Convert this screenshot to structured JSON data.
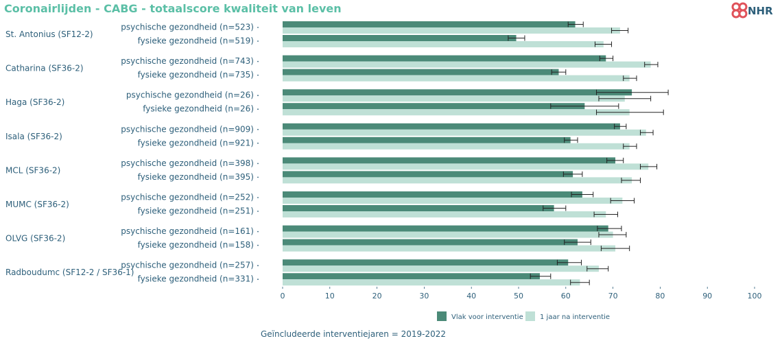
{
  "title": "Coronairlijden - CABG - totaalscore kwaliteit van leven",
  "logo_text": "NHR",
  "footer": "Geïncludeerde interventiejaren = 2019-2022",
  "colors": {
    "title": "#5bbfa6",
    "before": "#4b8a78",
    "after": "#bfe0d6",
    "logo": "#e0525a",
    "text": "#2d5f7a"
  },
  "chart_data": {
    "type": "bar",
    "orientation": "horizontal",
    "xlim": [
      0,
      100
    ],
    "x_ticks": [
      0,
      10,
      20,
      30,
      40,
      50,
      60,
      70,
      80,
      90,
      100
    ],
    "legend": [
      {
        "key": "before",
        "label": "Vlak voor interventie"
      },
      {
        "key": "after",
        "label": "1 jaar na interventie"
      }
    ],
    "legend_position": "bottom",
    "groups": [
      {
        "hospital": "St. Antonius (SF12-2)",
        "rows": [
          {
            "label": "psychische gezondheid (n=523)",
            "before": 62.0,
            "before_ci": [
              60.5,
              63.7
            ],
            "after": 71.5,
            "after_ci": [
              69.7,
              73.2
            ]
          },
          {
            "label": "fysieke gezondheid (n=519)",
            "before": 49.5,
            "before_ci": [
              47.8,
              51.3
            ],
            "after": 68.0,
            "after_ci": [
              66.2,
              69.7
            ]
          }
        ]
      },
      {
        "hospital": "Catharina (SF36-2)",
        "rows": [
          {
            "label": "psychische gezondheid (n=743)",
            "before": 68.5,
            "before_ci": [
              67.2,
              70.0
            ],
            "after": 78.0,
            "after_ci": [
              76.7,
              79.5
            ]
          },
          {
            "label": "fysieke gezondheid (n=735)",
            "before": 58.5,
            "before_ci": [
              57.0,
              60.0
            ],
            "after": 73.5,
            "after_ci": [
              72.2,
              75.0
            ]
          }
        ]
      },
      {
        "hospital": "Haga (SF36-2)",
        "rows": [
          {
            "label": "psychische gezondheid (n=26)",
            "before": 74.0,
            "before_ci": [
              66.5,
              81.7
            ],
            "after": 72.5,
            "after_ci": [
              67.0,
              78.0
            ]
          },
          {
            "label": "fysieke gezondheid (n=26)",
            "before": 64.0,
            "before_ci": [
              56.8,
              71.2
            ],
            "after": 73.5,
            "after_ci": [
              66.5,
              80.7
            ]
          }
        ]
      },
      {
        "hospital": "Isala (SF36-2)",
        "rows": [
          {
            "label": "psychische gezondheid (n=909)",
            "before": 71.5,
            "before_ci": [
              70.3,
              72.8
            ],
            "after": 77.0,
            "after_ci": [
              75.8,
              78.5
            ]
          },
          {
            "label": "fysieke gezondheid (n=921)",
            "before": 61.0,
            "before_ci": [
              59.7,
              62.5
            ],
            "after": 73.5,
            "after_ci": [
              72.2,
              75.0
            ]
          }
        ]
      },
      {
        "hospital": "MCL (SF36-2)",
        "rows": [
          {
            "label": "psychische gezondheid (n=398)",
            "before": 70.5,
            "before_ci": [
              68.7,
              72.2
            ],
            "after": 77.5,
            "after_ci": [
              75.8,
              79.3
            ]
          },
          {
            "label": "fysieke gezondheid (n=395)",
            "before": 61.5,
            "before_ci": [
              59.5,
              63.5
            ],
            "after": 74.0,
            "after_ci": [
              71.8,
              75.8
            ]
          }
        ]
      },
      {
        "hospital": "MUMC (SF36-2)",
        "rows": [
          {
            "label": "psychische gezondheid (n=252)",
            "before": 63.5,
            "before_ci": [
              61.2,
              65.8
            ],
            "after": 72.0,
            "after_ci": [
              69.5,
              74.5
            ]
          },
          {
            "label": "fysieke gezondheid (n=251)",
            "before": 57.5,
            "before_ci": [
              55.2,
              60.0
            ],
            "after": 68.5,
            "after_ci": [
              66.0,
              71.0
            ]
          }
        ]
      },
      {
        "hospital": "OLVG (SF36-2)",
        "rows": [
          {
            "label": "psychische gezondheid (n=161)",
            "before": 69.0,
            "before_ci": [
              66.7,
              71.8
            ],
            "after": 70.0,
            "after_ci": [
              67.0,
              72.8
            ]
          },
          {
            "label": "fysieke gezondheid (n=158)",
            "before": 62.5,
            "before_ci": [
              59.7,
              65.3
            ],
            "after": 70.5,
            "after_ci": [
              67.5,
              73.5
            ]
          }
        ]
      },
      {
        "hospital": "Radboudumc (SF12-2 / SF36-1)",
        "rows": [
          {
            "label": "psychische gezondheid (n=257)",
            "before": 60.5,
            "before_ci": [
              58.2,
              63.3
            ],
            "after": 67.0,
            "after_ci": [
              64.5,
              69.0
            ]
          },
          {
            "label": "fysieke gezondheid (n=331)",
            "before": 54.5,
            "before_ci": [
              52.5,
              56.8
            ],
            "after": 63.0,
            "after_ci": [
              61.0,
              65.0
            ]
          }
        ]
      }
    ]
  }
}
